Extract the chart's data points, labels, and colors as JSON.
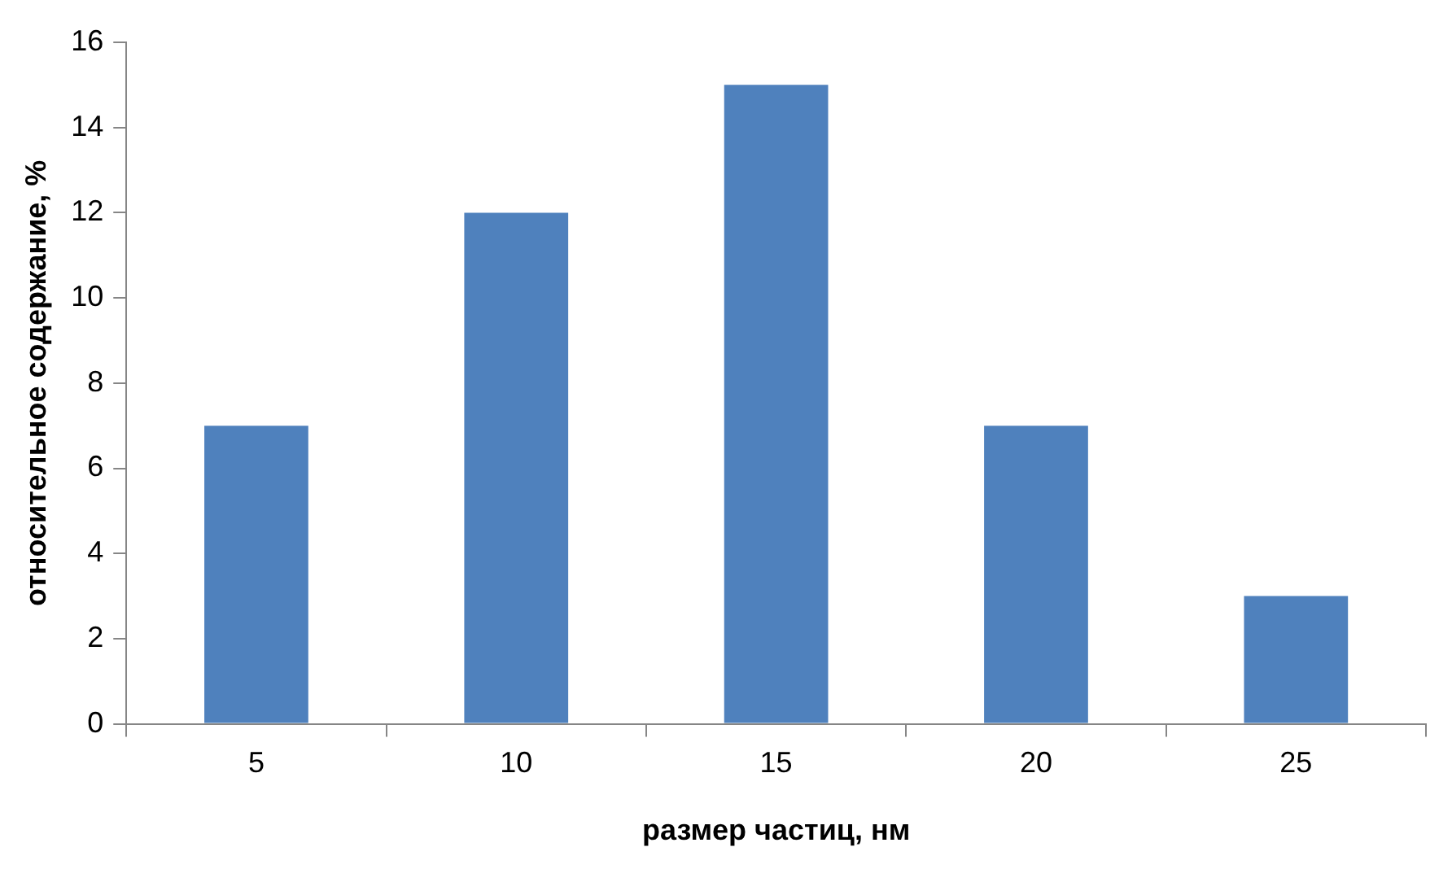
{
  "chart_data": {
    "type": "bar",
    "xlabel": "размер частиц, нм",
    "ylabel": "относительное содержание, %",
    "categories": [
      "5",
      "10",
      "15",
      "20",
      "25"
    ],
    "values": [
      7,
      12,
      15,
      7,
      3
    ],
    "color": "#4f81bd",
    "ylim": [
      0,
      16
    ],
    "yticks": [
      0,
      2,
      4,
      6,
      8,
      10,
      12,
      14,
      16
    ],
    "grid": false,
    "legend": false
  }
}
